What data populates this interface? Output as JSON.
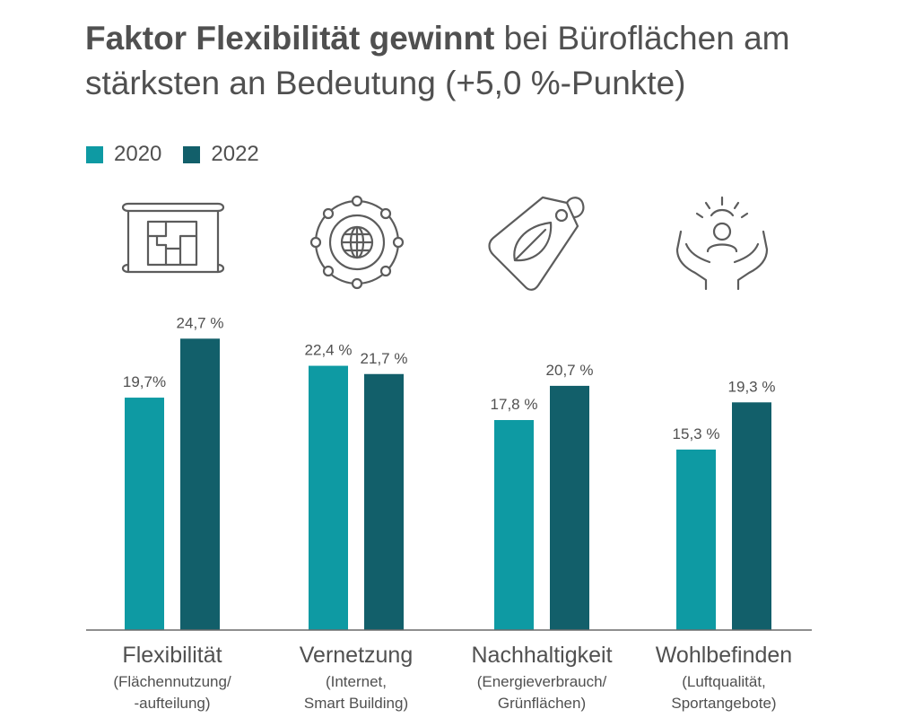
{
  "title": {
    "bold": "Faktor Flexibilität gewinnt",
    "rest": " bei Büroflächen am stärksten an Bedeutung (+5,0 %-Punkte)"
  },
  "colors": {
    "s2020": "#0e9aa3",
    "s2022": "#125f6a",
    "axis": "#6a6a6a",
    "icon": "#5c5c5c"
  },
  "chart_data": {
    "type": "bar",
    "categories": [
      "Flexibilität",
      "Vernetzung",
      "Nachhaltigkeit",
      "Wohlbefinden"
    ],
    "subtitles": [
      [
        "(Flächennutzung/",
        "-aufteilung)"
      ],
      [
        "(Internet,",
        "Smart Building)"
      ],
      [
        "(Energieverbrauch/",
        "Grünflächen)"
      ],
      [
        "(Luftqualität,",
        "Sportangebote)"
      ]
    ],
    "icons": [
      "floor-plan-icon",
      "network-globe-icon",
      "leaf-tag-icon",
      "hands-person-icon"
    ],
    "series": [
      {
        "name": "2020",
        "values": [
          19.7,
          22.4,
          17.8,
          15.3
        ],
        "labels": [
          "19,7%",
          "22,4 %",
          "17,8 %",
          "15,3 %"
        ]
      },
      {
        "name": "2022",
        "values": [
          24.7,
          21.7,
          20.7,
          19.3
        ],
        "labels": [
          "24,7 %",
          "21,7 %",
          "20,7 %",
          "19,3 %"
        ]
      }
    ],
    "ylim": [
      0,
      28.3
    ],
    "grid": false,
    "legend_position": "top-left"
  }
}
